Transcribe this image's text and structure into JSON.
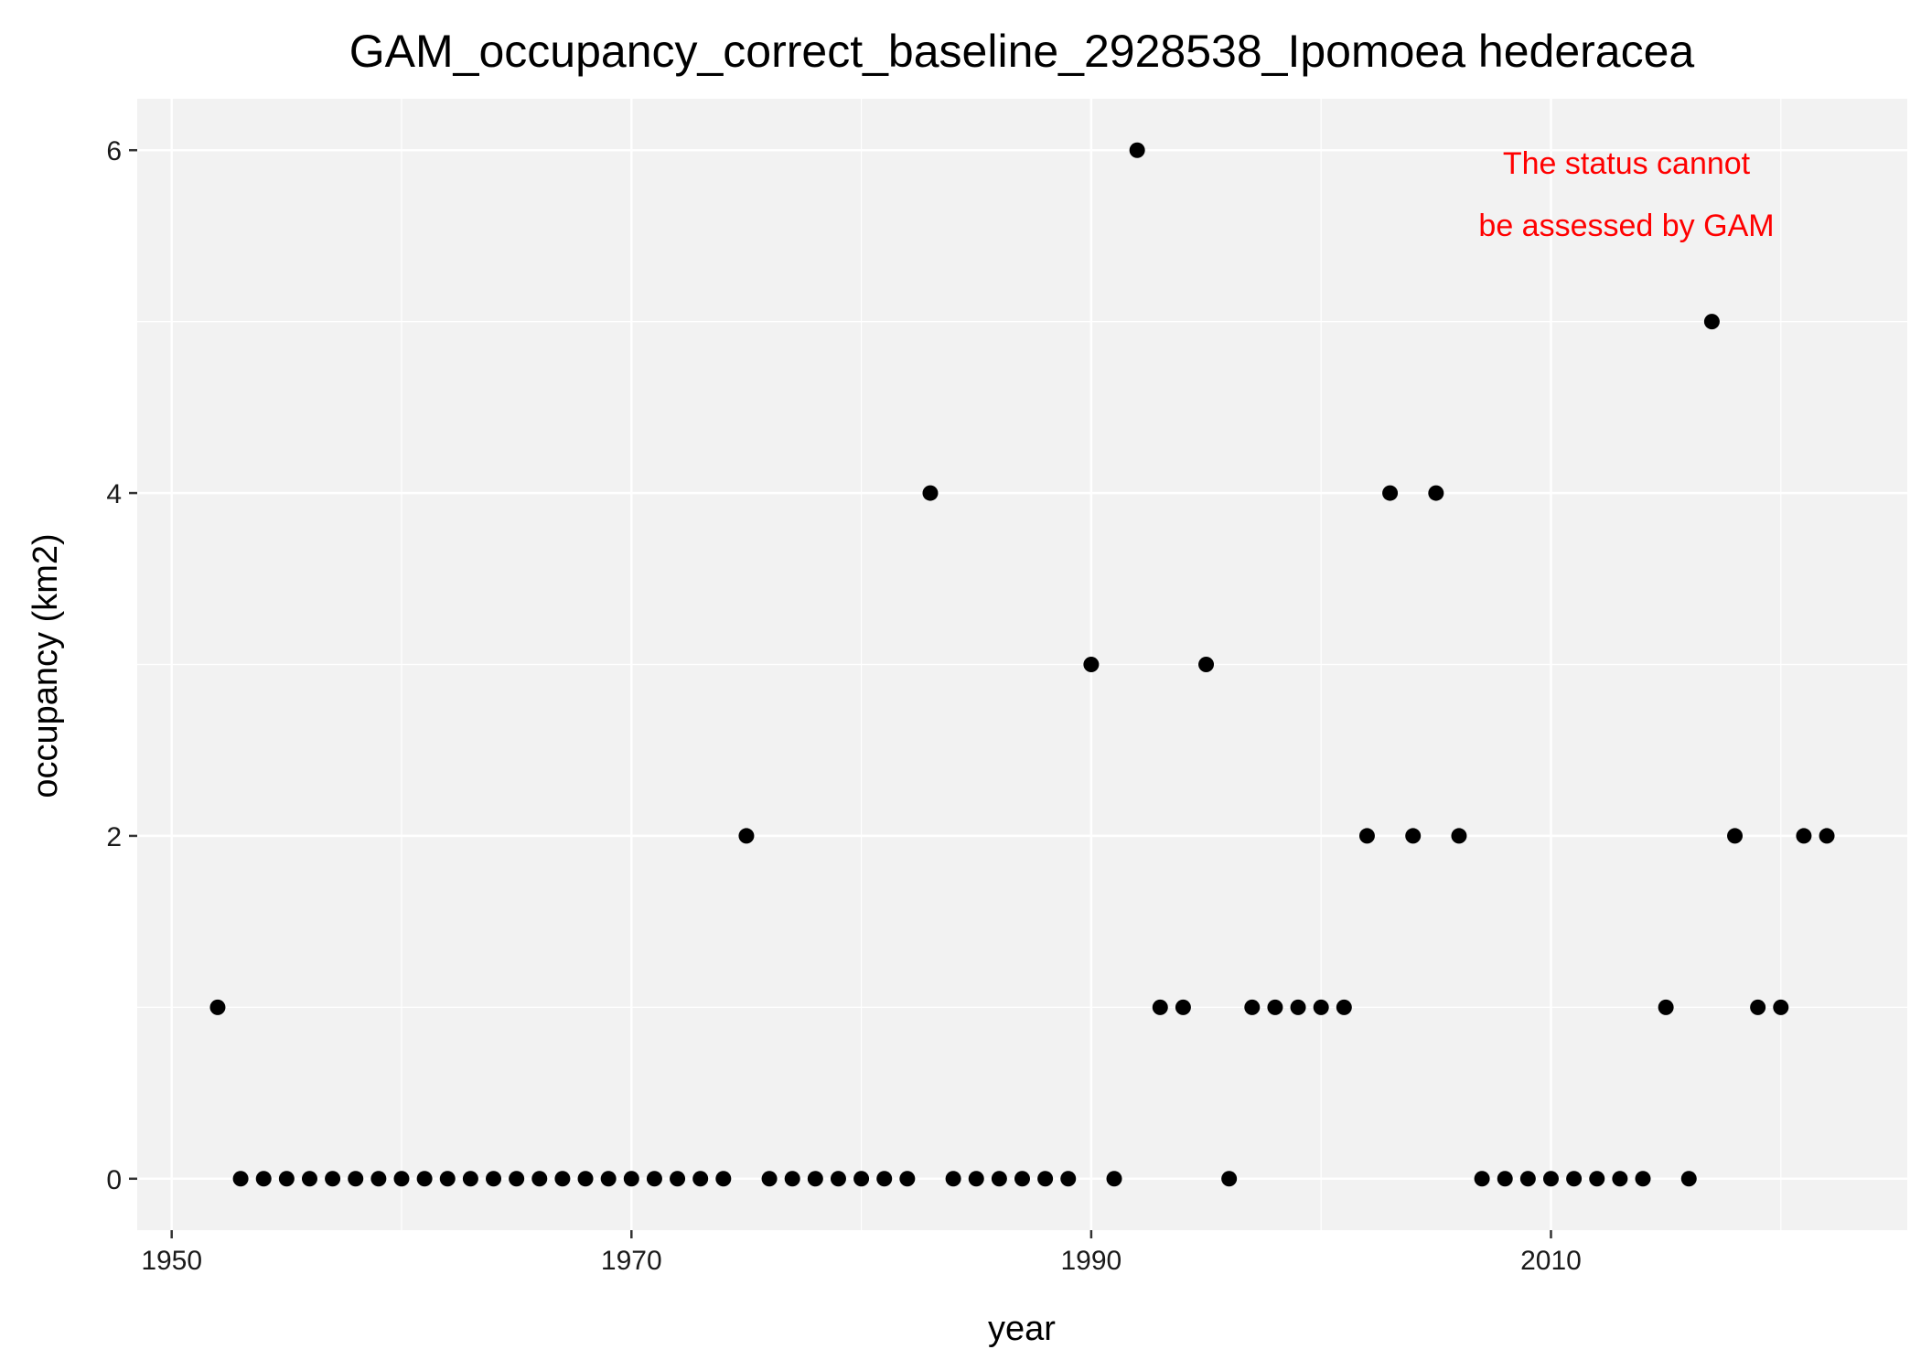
{
  "chart_data": {
    "type": "scatter",
    "title": "GAM_occupancy_correct_baseline_2928538_Ipomoea hederacea",
    "xlabel": "year",
    "ylabel": "occupancy (km2)",
    "xlim": [
      1948.5,
      2025.5
    ],
    "ylim": [
      -0.3,
      6.3
    ],
    "x_ticks": [
      1950,
      1970,
      1990,
      2010
    ],
    "x_tick_labels": [
      "1950",
      "1970",
      "1990",
      "2010"
    ],
    "y_ticks": [
      0,
      2,
      4,
      6
    ],
    "y_tick_labels": [
      "0",
      "2",
      "4",
      "6"
    ],
    "grid": true,
    "annotation": {
      "lines": [
        "The status cannot",
        "be assessed by GAM"
      ],
      "color": "#ff0000",
      "position": "top-right"
    },
    "colors": {
      "panel_background": "#f2f2f2",
      "grid": "#ffffff",
      "point": "#000000"
    },
    "x": [
      1952,
      1953,
      1954,
      1955,
      1956,
      1957,
      1958,
      1959,
      1960,
      1961,
      1962,
      1963,
      1964,
      1965,
      1966,
      1967,
      1968,
      1969,
      1970,
      1971,
      1972,
      1973,
      1974,
      1975,
      1976,
      1977,
      1978,
      1979,
      1980,
      1981,
      1982,
      1983,
      1984,
      1985,
      1986,
      1987,
      1988,
      1989,
      1990,
      1991,
      1992,
      1993,
      1994,
      1995,
      1996,
      1997,
      1998,
      1999,
      2000,
      2001,
      2002,
      2003,
      2004,
      2005,
      2006,
      2007,
      2008,
      2009,
      2010,
      2011,
      2012,
      2013,
      2014,
      2015,
      2016,
      2017,
      2018,
      2019,
      2020,
      2021,
      2022
    ],
    "y": [
      1,
      0,
      0,
      0,
      0,
      0,
      0,
      0,
      0,
      0,
      0,
      0,
      0,
      0,
      0,
      0,
      0,
      0,
      0,
      0,
      0,
      0,
      0,
      2,
      0,
      0,
      0,
      0,
      0,
      0,
      0,
      4,
      0,
      0,
      0,
      0,
      0,
      0,
      3,
      0,
      6,
      1,
      1,
      3,
      0,
      1,
      1,
      1,
      1,
      1,
      2,
      4,
      2,
      4,
      2,
      0,
      0,
      0,
      0,
      0,
      0,
      0,
      0,
      1,
      0,
      5,
      2,
      1,
      1,
      2,
      2
    ]
  }
}
